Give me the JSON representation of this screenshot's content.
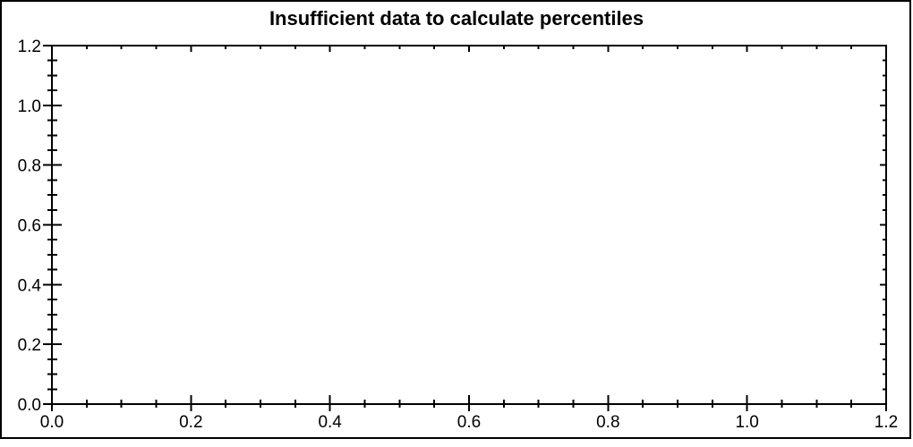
{
  "colors": {
    "background": "#ffffff",
    "axis": "#000000",
    "text": "#000000",
    "border": "#000000"
  },
  "chart_data": {
    "type": "scatter",
    "title": "Insufficient data to calculate percentiles",
    "series": [],
    "points": [],
    "xlabel": "",
    "ylabel": "",
    "xlim": [
      0.0,
      1.2
    ],
    "ylim": [
      0.0,
      1.2
    ],
    "x_ticks": [
      0.0,
      0.2,
      0.4,
      0.6,
      0.8,
      1.0,
      1.2
    ],
    "y_ticks": [
      0.0,
      0.2,
      0.4,
      0.6,
      0.8,
      1.0,
      1.2
    ],
    "x_tick_labels": [
      "0.0",
      "0.2",
      "0.4",
      "0.6",
      "0.8",
      "1.0",
      "1.2"
    ],
    "y_tick_labels": [
      "0.0",
      "0.2",
      "0.4",
      "0.6",
      "0.8",
      "1.0",
      "1.2"
    ],
    "minor_tick_step": 0.05,
    "minor_ticks_per_major": 3,
    "grid": false,
    "legend_position": "none",
    "frame": "box",
    "plot_area_empty": true
  }
}
